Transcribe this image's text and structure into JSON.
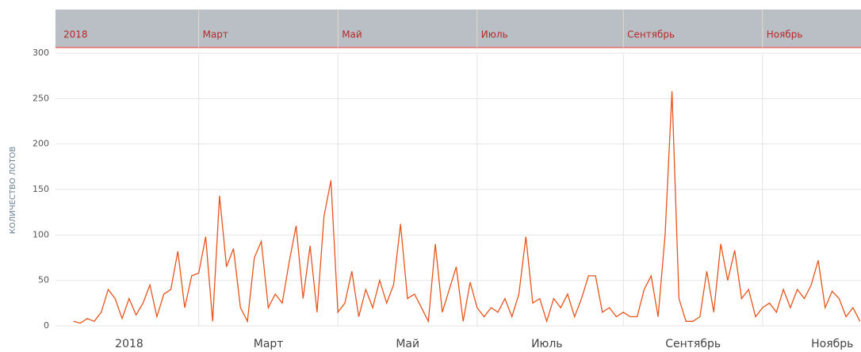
{
  "chart_data": {
    "type": "line",
    "y_label": "КОЛИЧЕСТВО ЛОТОВ",
    "categories": [
      "2018",
      null,
      null,
      null,
      null,
      null,
      null,
      null,
      null,
      null,
      null,
      null,
      null,
      null,
      null,
      null,
      null,
      null,
      null,
      null,
      "Март",
      null,
      null,
      null,
      null,
      null,
      null,
      null,
      null,
      null,
      null,
      null,
      null,
      null,
      null,
      null,
      null,
      null,
      null,
      null,
      "Май",
      null,
      null,
      null,
      null,
      null,
      null,
      null,
      null,
      null,
      null,
      null,
      null,
      null,
      null,
      null,
      null,
      null,
      null,
      null,
      "Июль",
      null,
      null,
      null,
      null,
      null,
      null,
      null,
      null,
      null,
      null,
      null,
      null,
      null,
      null,
      null,
      null,
      null,
      null,
      null,
      null,
      "Сентябрь",
      null,
      null,
      null,
      null,
      null,
      null,
      null,
      null,
      null,
      null,
      null,
      null,
      null,
      null,
      null,
      null,
      null,
      null,
      null,
      "Ноябрь",
      null,
      null,
      null,
      null,
      null,
      null,
      null,
      null,
      null,
      null,
      null,
      null,
      null,
      null
    ],
    "series": [
      {
        "color": "#e8541c",
        "values": [
          null,
          null,
          5,
          3,
          8,
          5,
          15,
          40,
          30,
          8,
          30,
          12,
          25,
          45,
          10,
          35,
          40,
          82,
          20,
          55,
          58,
          98,
          5,
          143,
          65,
          85,
          20,
          5,
          75,
          93,
          20,
          35,
          25,
          70,
          110,
          30,
          88,
          15,
          120,
          160,
          15,
          25,
          60,
          10,
          40,
          20,
          50,
          25,
          45,
          112,
          30,
          35,
          20,
          5,
          90,
          15,
          40,
          65,
          5,
          48,
          20,
          10,
          20,
          15,
          30,
          10,
          35,
          98,
          25,
          30,
          5,
          30,
          20,
          35,
          10,
          30,
          55,
          55,
          15,
          20,
          10,
          15,
          10,
          10,
          40,
          55,
          10,
          100,
          258,
          30,
          5,
          5,
          10,
          60,
          15,
          90,
          50,
          83,
          30,
          40,
          10,
          20,
          25,
          15,
          40,
          20,
          40,
          30,
          45,
          72,
          20,
          38,
          30,
          10,
          20,
          5
        ]
      }
    ],
    "ylim": [
      0,
      300
    ],
    "yticks": [
      0,
      50,
      100,
      150,
      200,
      250,
      300
    ],
    "grid": true
  }
}
